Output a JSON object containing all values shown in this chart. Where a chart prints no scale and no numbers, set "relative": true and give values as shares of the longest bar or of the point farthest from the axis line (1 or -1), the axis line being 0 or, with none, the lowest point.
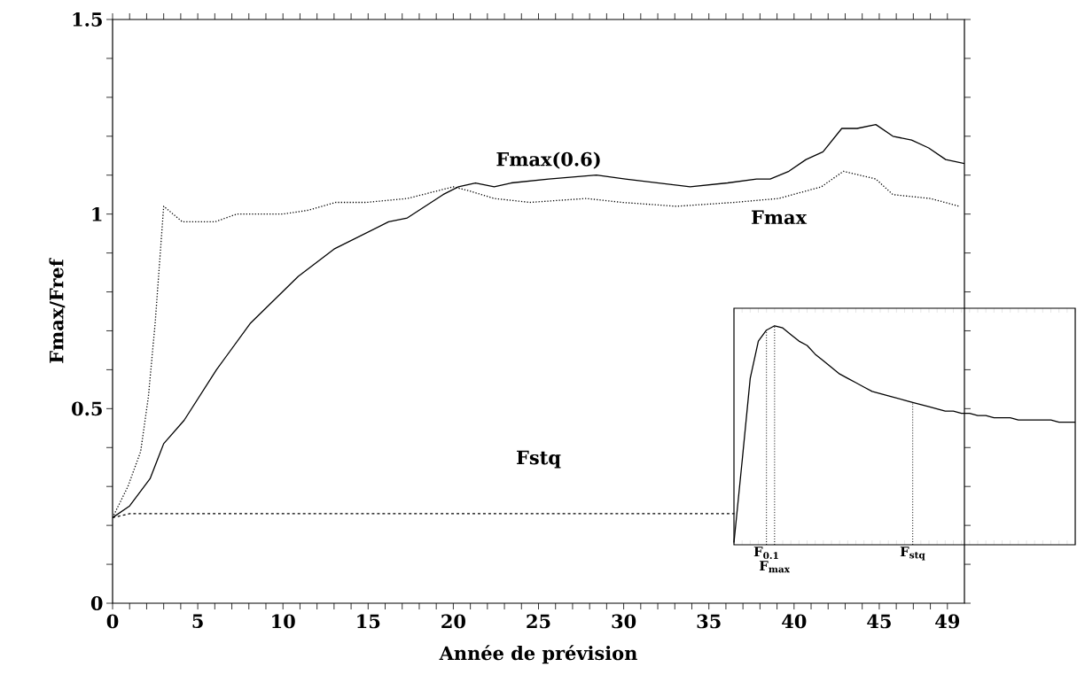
{
  "chart_data": [
    {
      "type": "line",
      "xlabel": "Année de prévision",
      "ylabel": "Fmax/Fref",
      "xlim": [
        0,
        50
      ],
      "ylim": [
        0,
        1.5
      ],
      "xticks": [
        0,
        {
          "value": 1,
          "label": null
        },
        {
          "value": 2,
          "label": null
        },
        {
          "value": 3,
          "label": null
        },
        {
          "value": 4,
          "label": null
        },
        5,
        {
          "value": 6,
          "label": null
        },
        {
          "value": 7,
          "label": null
        },
        {
          "value": 8,
          "label": null
        },
        {
          "value": 9,
          "label": null
        },
        10,
        {
          "value": 11,
          "label": null
        },
        {
          "value": 12,
          "label": null
        },
        {
          "value": 13,
          "label": null
        },
        {
          "value": 14,
          "label": null
        },
        15,
        {
          "value": 16,
          "label": null
        },
        {
          "value": 17,
          "label": null
        },
        {
          "value": 18,
          "label": null
        },
        {
          "value": 19,
          "label": null
        },
        20,
        {
          "value": 21,
          "label": null
        },
        {
          "value": 22,
          "label": null
        },
        {
          "value": 23,
          "label": null
        },
        {
          "value": 24,
          "label": null
        },
        25,
        {
          "value": 26,
          "label": null
        },
        {
          "value": 27,
          "label": null
        },
        {
          "value": 28,
          "label": null
        },
        {
          "value": 29,
          "label": null
        },
        30,
        {
          "value": 31,
          "label": null
        },
        {
          "value": 32,
          "label": null
        },
        {
          "value": 33,
          "label": null
        },
        {
          "value": 34,
          "label": null
        },
        35,
        {
          "value": 36,
          "label": null
        },
        {
          "value": 37,
          "label": null
        },
        {
          "value": 38,
          "label": null
        },
        {
          "value": 39,
          "label": null
        },
        40,
        {
          "value": 41,
          "label": null
        },
        {
          "value": 42,
          "label": null
        },
        {
          "value": 43,
          "label": null
        },
        {
          "value": 44,
          "label": null
        },
        45,
        {
          "value": 46,
          "label": null
        },
        {
          "value": 47,
          "label": null
        },
        {
          "value": 48,
          "label": null
        },
        49
      ],
      "yticks": [
        0,
        {
          "value": 0.1,
          "label": null
        },
        {
          "value": 0.2,
          "label": null
        },
        {
          "value": 0.3,
          "label": null
        },
        {
          "value": 0.4,
          "label": null
        },
        0.5,
        {
          "value": 0.6,
          "label": null
        },
        {
          "value": 0.7,
          "label": null
        },
        {
          "value": 0.8,
          "label": null
        },
        {
          "value": 0.9,
          "label": null
        },
        1,
        {
          "value": 1.1,
          "label": null
        },
        {
          "value": 1.2,
          "label": null
        },
        {
          "value": 1.3,
          "label": null
        },
        {
          "value": 1.4,
          "label": null
        },
        1.5
      ],
      "series": [
        {
          "name": "Fmax(0.6)",
          "color": "#000000",
          "line_style": "solid",
          "x": [
            0,
            1.0,
            2.2,
            3.0,
            4.2,
            6.1,
            8.1,
            10.9,
            13.0,
            16.2,
            17.3,
            19.4,
            20.3,
            21.3,
            22.4,
            23.4,
            25.6,
            28.4,
            30.1,
            33.9,
            36.1,
            37.8,
            38.6,
            39.7,
            40.7,
            41.7,
            42.8,
            43.7,
            44.8,
            45.8,
            46.9,
            47.9,
            48.9,
            50.0
          ],
          "values": [
            0.22,
            0.25,
            0.32,
            0.41,
            0.47,
            0.6,
            0.72,
            0.84,
            0.91,
            0.98,
            0.99,
            1.05,
            1.07,
            1.08,
            1.07,
            1.08,
            1.09,
            1.1,
            1.09,
            1.07,
            1.08,
            1.09,
            1.09,
            1.11,
            1.14,
            1.16,
            1.22,
            1.22,
            1.23,
            1.2,
            1.19,
            1.17,
            1.14,
            1.13
          ]
        },
        {
          "name": "Fmax",
          "color": "#000000",
          "line_style": "dotted",
          "x": [
            0,
            0.9,
            1.65,
            2.1,
            2.5,
            2.8,
            3.0,
            4.1,
            5.0,
            6.0,
            7.3,
            10.0,
            11.5,
            13.1,
            14.9,
            17.3,
            20.0,
            20.9,
            22.4,
            24.5,
            27.8,
            29.9,
            33.1,
            36.5,
            39.1,
            41.6,
            42.9,
            44.8,
            45.8,
            48.0,
            49.7
          ],
          "values": [
            0.22,
            0.3,
            0.39,
            0.53,
            0.72,
            0.9,
            1.02,
            0.98,
            0.98,
            0.98,
            1.0,
            1.0,
            1.01,
            1.03,
            1.03,
            1.04,
            1.07,
            1.06,
            1.04,
            1.03,
            1.04,
            1.03,
            1.02,
            1.03,
            1.04,
            1.07,
            1.11,
            1.09,
            1.05,
            1.04,
            1.02
          ]
        },
        {
          "name": "Fstq",
          "color": "#000000",
          "line_style": "dashed",
          "x": [
            0,
            1,
            5,
            10,
            15,
            20,
            25,
            30,
            36.5
          ],
          "values": [
            0.22,
            0.23,
            0.23,
            0.23,
            0.23,
            0.23,
            0.23,
            0.23,
            0.23
          ]
        }
      ]
    },
    {
      "type": "line",
      "relative": true,
      "categories": [
        null,
        null,
        null,
        null,
        "F$_{0.1}$",
        "F$_{max}$",
        null,
        null,
        null,
        null,
        null,
        null,
        null,
        null,
        null,
        null,
        null,
        null,
        null,
        null,
        null,
        null,
        "F$_{stq}$",
        null,
        null,
        null,
        null,
        null,
        null,
        null,
        null,
        null,
        null,
        null,
        null,
        null,
        null,
        null,
        null,
        null,
        null,
        null,
        null
      ],
      "series": [
        {
          "color": "#000000",
          "values": [
            0.01,
            0.38,
            0.76,
            0.93,
            0.98,
            1.0,
            0.99,
            0.96,
            0.93,
            0.91,
            0.87,
            0.84,
            0.81,
            0.78,
            0.76,
            0.74,
            0.72,
            0.7,
            0.69,
            0.68,
            0.67,
            0.66,
            0.65,
            0.64,
            0.63,
            0.62,
            0.61,
            0.61,
            0.6,
            0.6,
            0.59,
            0.59,
            0.58,
            0.58,
            0.58,
            0.57,
            0.57,
            0.57,
            0.57,
            0.57,
            0.56,
            0.56,
            0.56
          ]
        }
      ]
    }
  ]
}
